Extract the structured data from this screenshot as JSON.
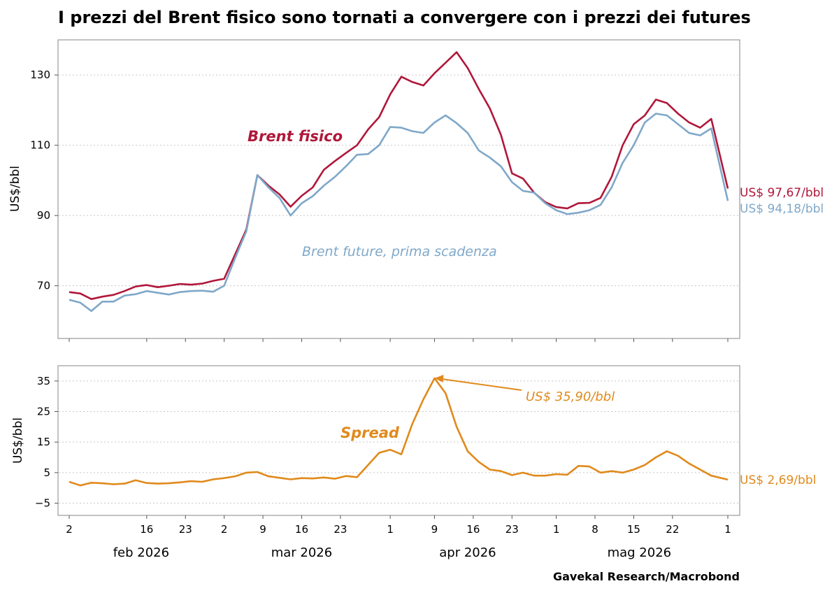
{
  "title": "I prezzi del Brent fisico sono tornati a convergere con i prezzi dei futures",
  "source": "Gavekal Research/Macrobond",
  "colors": {
    "physical": "#B0173A",
    "future": "#7FA8C9",
    "spread": "#E08A1C",
    "grid": "#c8c8c8",
    "frame": "#9a9a9a"
  },
  "x_axis": {
    "tick_labels": [
      "2",
      "16",
      "23",
      "2",
      "9",
      "16",
      "23",
      "1",
      "9",
      "16",
      "23",
      "1",
      "8",
      "15",
      "22",
      "1"
    ],
    "tick_dates": [
      "2026-02-02",
      "2026-02-16",
      "2026-02-23",
      "2026-03-02",
      "2026-03-09",
      "2026-03-16",
      "2026-03-23",
      "2026-04-01",
      "2026-04-09",
      "2026-04-16",
      "2026-04-23",
      "2026-05-01",
      "2026-05-08",
      "2026-05-15",
      "2026-05-22",
      "2026-06-01"
    ],
    "month_labels": [
      "feb 2026",
      "mar 2026",
      "apr 2026",
      "mag 2026"
    ],
    "month_label_dates": [
      "2026-02-15",
      "2026-03-16",
      "2026-04-15",
      "2026-05-16"
    ]
  },
  "chart_data": [
    {
      "type": "line",
      "title": "I prezzi del Brent fisico sono tornati a convergere con i prezzi dei futures",
      "xlabel": "",
      "ylabel": "US$/bbl",
      "ylim": [
        55,
        140
      ],
      "yticks": [
        70,
        90,
        110,
        130
      ],
      "grid": true,
      "x": [
        "2026-02-02",
        "2026-02-04",
        "2026-02-06",
        "2026-02-08",
        "2026-02-10",
        "2026-02-12",
        "2026-02-14",
        "2026-02-16",
        "2026-02-18",
        "2026-02-20",
        "2026-02-22",
        "2026-02-24",
        "2026-02-26",
        "2026-02-28",
        "2026-03-02",
        "2026-03-04",
        "2026-03-06",
        "2026-03-08",
        "2026-03-10",
        "2026-03-12",
        "2026-03-14",
        "2026-03-16",
        "2026-03-18",
        "2026-03-20",
        "2026-03-22",
        "2026-03-24",
        "2026-03-26",
        "2026-03-28",
        "2026-03-30",
        "2026-04-01",
        "2026-04-03",
        "2026-04-05",
        "2026-04-07",
        "2026-04-09",
        "2026-04-11",
        "2026-04-13",
        "2026-04-15",
        "2026-04-17",
        "2026-04-19",
        "2026-04-21",
        "2026-04-23",
        "2026-04-25",
        "2026-04-27",
        "2026-04-29",
        "2026-05-01",
        "2026-05-03",
        "2026-05-05",
        "2026-05-07",
        "2026-05-09",
        "2026-05-11",
        "2026-05-13",
        "2026-05-15",
        "2026-05-17",
        "2026-05-19",
        "2026-05-21",
        "2026-05-23",
        "2026-05-25",
        "2026-05-27",
        "2026-05-29",
        "2026-06-01"
      ],
      "series": [
        {
          "name": "Brent fisico",
          "values": [
            68.2,
            67.8,
            66.2,
            66.9,
            67.4,
            68.5,
            69.8,
            70.2,
            69.6,
            70.0,
            70.5,
            70.3,
            70.6,
            71.4,
            72.0,
            79.0,
            86.0,
            101.5,
            98.5,
            96.0,
            92.5,
            95.6,
            98.0,
            103.0,
            105.5,
            107.8,
            110.0,
            114.5,
            118.0,
            124.5,
            129.5,
            128.0,
            127.0,
            130.5,
            133.5,
            136.5,
            132.0,
            126.0,
            120.5,
            113.0,
            102.0,
            100.5,
            96.5,
            93.8,
            92.4,
            92.0,
            93.5,
            93.6,
            95.0,
            101.0,
            110.0,
            116.0,
            118.5,
            123.0,
            122.0,
            119.0,
            116.5,
            115.0,
            117.5,
            97.67
          ]
        },
        {
          "name": "Brent future, prima scadenza",
          "values": [
            66.0,
            65.2,
            62.8,
            65.5,
            65.5,
            67.2,
            67.6,
            68.5,
            68.0,
            67.5,
            68.2,
            68.5,
            68.6,
            68.3,
            70.0,
            78.0,
            85.5,
            101.5,
            98.0,
            95.0,
            90.0,
            93.5,
            95.5,
            98.5,
            101.0,
            104.0,
            107.3,
            107.5,
            110.0,
            115.2,
            115.0,
            114.0,
            113.5,
            116.5,
            118.5,
            116.3,
            113.5,
            108.5,
            106.5,
            104.0,
            99.5,
            97.0,
            96.5,
            93.5,
            91.5,
            90.4,
            90.8,
            91.5,
            93.0,
            98.0,
            105.0,
            110.0,
            116.5,
            119.0,
            118.5,
            116.0,
            113.5,
            112.8,
            114.8,
            94.18
          ]
        }
      ],
      "annotations": [
        {
          "text": "Brent fisico",
          "x": "2026-03-06",
          "y": 113.5,
          "series": "Brent fisico"
        },
        {
          "text": "Brent future, prima scadenza",
          "x": "2026-03-16",
          "y": 79.5,
          "series": "Brent future, prima scadenza"
        },
        {
          "text": "US$ 97,67/bbl",
          "x": "2026-06-01",
          "y": 97.67,
          "series": "Brent fisico"
        },
        {
          "text": "US$ 94,18/bbl",
          "x": "2026-06-01",
          "y": 94.18,
          "series": "Brent future, prima scadenza"
        }
      ]
    },
    {
      "type": "line",
      "title": "",
      "xlabel": "",
      "ylabel": "US$/bbl",
      "ylim": [
        -9,
        40
      ],
      "yticks": [
        -5,
        5,
        15,
        25,
        35
      ],
      "grid": true,
      "x": [
        "2026-02-02",
        "2026-02-04",
        "2026-02-06",
        "2026-02-08",
        "2026-02-10",
        "2026-02-12",
        "2026-02-14",
        "2026-02-16",
        "2026-02-18",
        "2026-02-20",
        "2026-02-22",
        "2026-02-24",
        "2026-02-26",
        "2026-02-28",
        "2026-03-02",
        "2026-03-04",
        "2026-03-06",
        "2026-03-08",
        "2026-03-10",
        "2026-03-12",
        "2026-03-14",
        "2026-03-16",
        "2026-03-18",
        "2026-03-20",
        "2026-03-22",
        "2026-03-24",
        "2026-03-26",
        "2026-03-28",
        "2026-03-30",
        "2026-04-01",
        "2026-04-03",
        "2026-04-05",
        "2026-04-07",
        "2026-04-09",
        "2026-04-11",
        "2026-04-13",
        "2026-04-15",
        "2026-04-17",
        "2026-04-19",
        "2026-04-21",
        "2026-04-23",
        "2026-04-25",
        "2026-04-27",
        "2026-04-29",
        "2026-05-01",
        "2026-05-03",
        "2026-05-05",
        "2026-05-07",
        "2026-05-09",
        "2026-05-11",
        "2026-05-13",
        "2026-05-15",
        "2026-05-17",
        "2026-05-19",
        "2026-05-21",
        "2026-05-23",
        "2026-05-25",
        "2026-05-27",
        "2026-05-29",
        "2026-06-01"
      ],
      "series": [
        {
          "name": "Spread",
          "values": [
            2.0,
            0.8,
            1.7,
            1.5,
            1.2,
            1.4,
            2.5,
            1.6,
            1.4,
            1.5,
            1.8,
            2.2,
            2.0,
            2.8,
            3.2,
            3.8,
            5.0,
            5.2,
            3.8,
            3.3,
            2.8,
            3.2,
            3.1,
            3.4,
            3.0,
            3.9,
            3.5,
            7.5,
            11.5,
            12.5,
            11.0,
            21.0,
            29.0,
            35.9,
            31.0,
            20.0,
            12.0,
            8.5,
            6.0,
            5.5,
            4.2,
            5.0,
            4.0,
            4.0,
            4.5,
            4.3,
            7.2,
            7.0,
            5.0,
            5.5,
            5.0,
            6.0,
            7.5,
            10.0,
            12.0,
            10.5,
            8.0,
            6.0,
            4.0,
            2.69
          ]
        }
      ],
      "annotations": [
        {
          "text": "Spread",
          "x": "2026-03-23",
          "y": 17.5,
          "series": "Spread"
        },
        {
          "text": "US$ 35,90/bbl",
          "x": "2026-04-09",
          "y": 35.9,
          "series": "Spread"
        },
        {
          "text": "US$ 2,69/bbl",
          "x": "2026-06-01",
          "y": 2.69,
          "series": "Spread"
        }
      ]
    }
  ]
}
